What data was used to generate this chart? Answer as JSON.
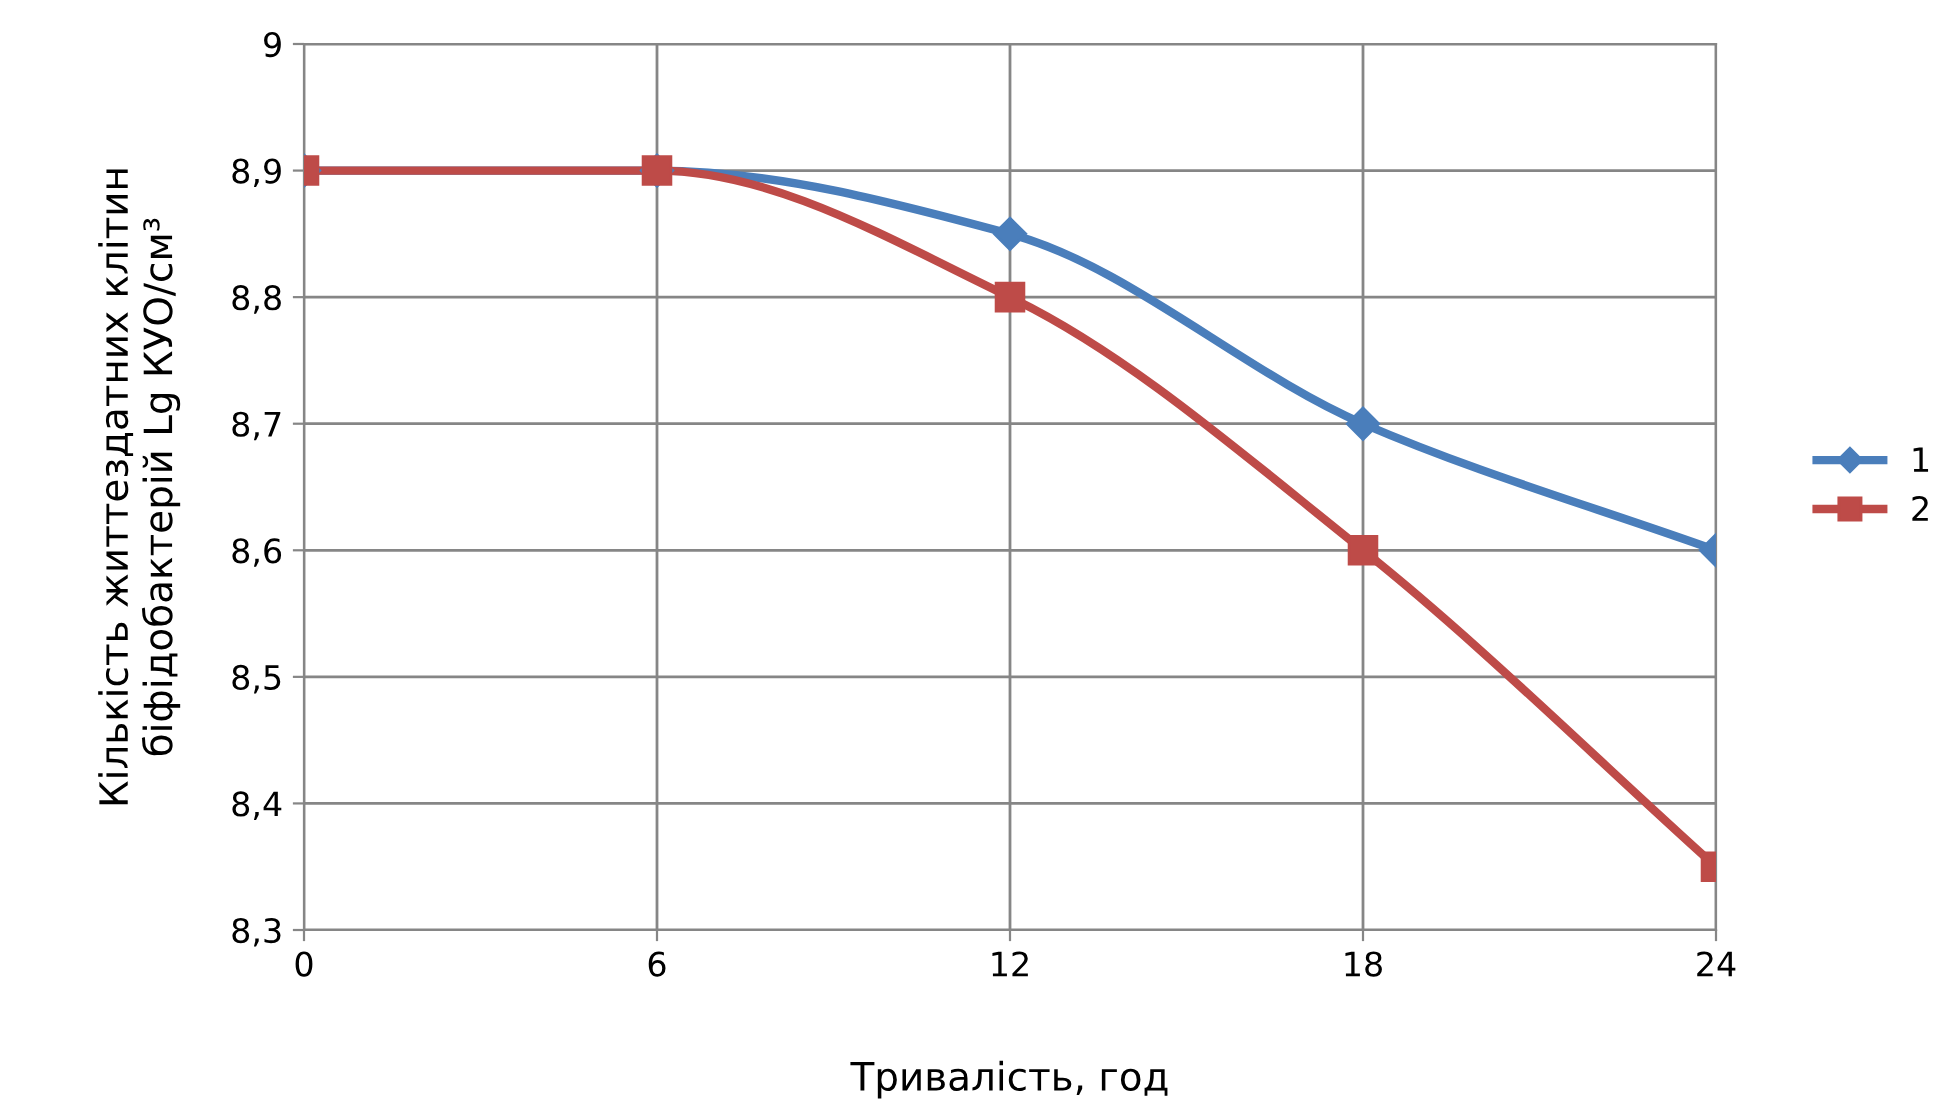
{
  "chart_data": {
    "type": "line",
    "xlabel": "Тривалість, год",
    "ylabel": "Кількість життездатних клітин\nбіфідобактерій Lg КУО/см³",
    "x": [
      0,
      6,
      12,
      18,
      24
    ],
    "series": [
      {
        "name": "1",
        "color": "#4a7ebb",
        "marker": "diamond",
        "values": [
          8.9,
          8.9,
          8.85,
          8.7,
          8.6
        ]
      },
      {
        "name": "2",
        "color": "#be4b48",
        "marker": "square",
        "values": [
          8.9,
          8.9,
          8.8,
          8.6,
          8.35
        ]
      }
    ],
    "xlim": [
      0,
      24
    ],
    "xticks": [
      0,
      6,
      12,
      18,
      24
    ],
    "ylim": [
      8.3,
      9
    ],
    "yticks": [
      {
        "value": 8.3,
        "label": "8,3"
      },
      {
        "value": 8.4,
        "label": "8,4"
      },
      {
        "value": 8.5,
        "label": "8,5"
      },
      {
        "value": 8.6,
        "label": "8,6"
      },
      {
        "value": 8.7,
        "label": "8,7"
      },
      {
        "value": 8.8,
        "label": "8,8"
      },
      {
        "value": 8.9,
        "label": "8,9"
      },
      {
        "value": 9,
        "label": "9"
      }
    ],
    "grid": true,
    "legend": "right",
    "line_style": "solid"
  }
}
